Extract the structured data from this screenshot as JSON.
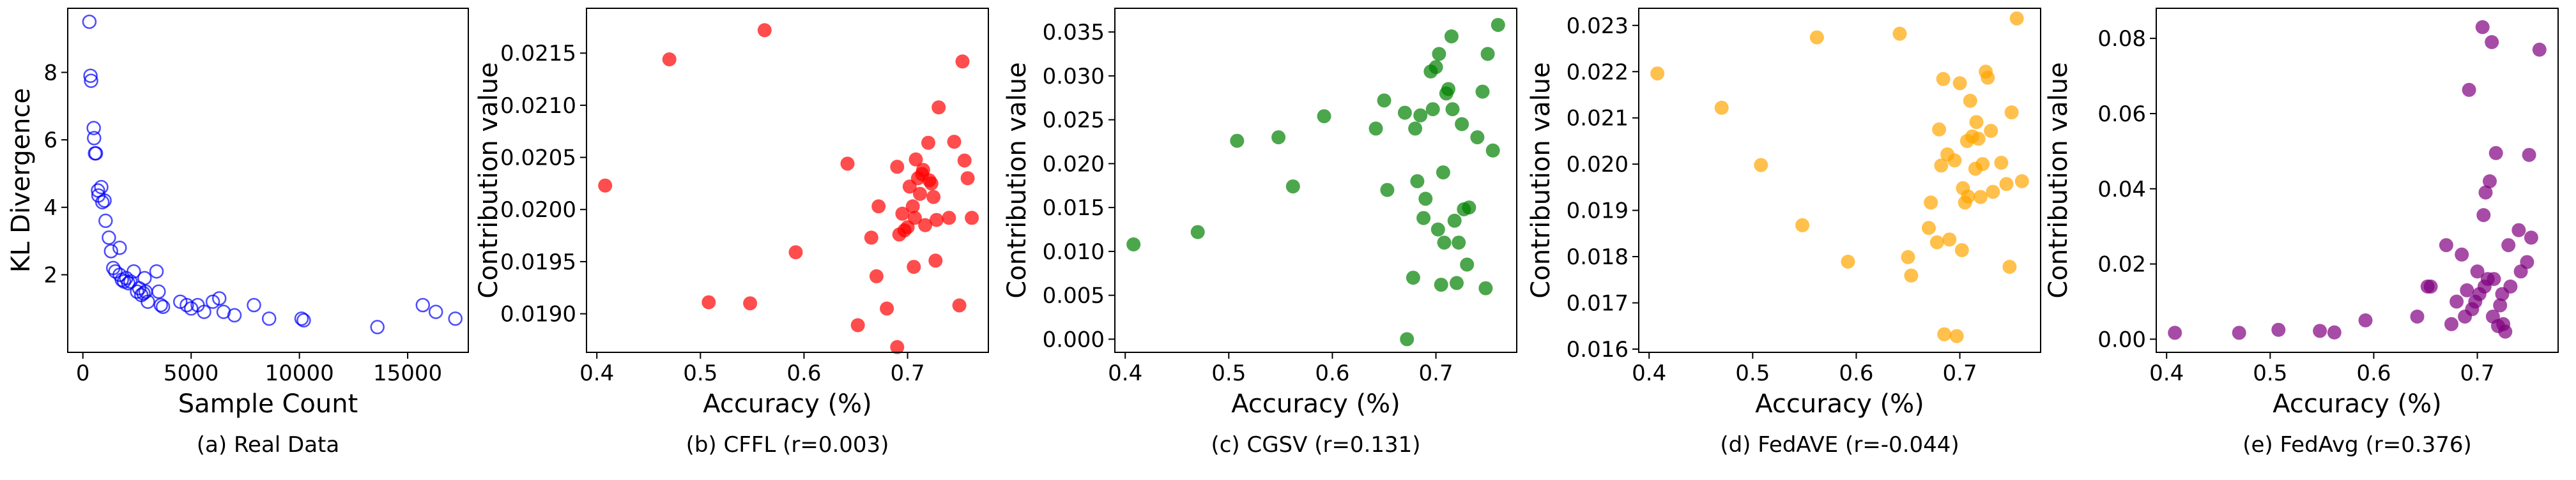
{
  "chart_data": [
    {
      "type": "scatter",
      "caption": "(a) Real Data",
      "xlabel": "Sample Count",
      "ylabel": "KL Divergence",
      "xlim": [
        -700,
        17800
      ],
      "ylim": [
        -0.3,
        9.9
      ],
      "xticks": [
        0,
        5000,
        10000,
        15000
      ],
      "xtick_labels": [
        "0",
        "5000",
        "10000",
        "15000"
      ],
      "yticks": [
        2,
        4,
        6,
        8
      ],
      "ytick_labels": [
        "2",
        "4",
        "6",
        "8"
      ],
      "color": "#0000ff",
      "marker": "hollow",
      "points": [
        [
          300,
          9.5
        ],
        [
          350,
          7.9
        ],
        [
          380,
          7.75
        ],
        [
          500,
          6.35
        ],
        [
          520,
          6.05
        ],
        [
          560,
          5.6
        ],
        [
          600,
          5.6
        ],
        [
          700,
          4.5
        ],
        [
          720,
          4.35
        ],
        [
          850,
          4.6
        ],
        [
          900,
          4.15
        ],
        [
          1000,
          4.2
        ],
        [
          1050,
          3.6
        ],
        [
          1200,
          3.1
        ],
        [
          1300,
          2.7
        ],
        [
          1400,
          2.2
        ],
        [
          1500,
          2.1
        ],
        [
          1700,
          2.8
        ],
        [
          1700,
          2.0
        ],
        [
          1800,
          1.85
        ],
        [
          1900,
          1.8
        ],
        [
          2000,
          1.9
        ],
        [
          2100,
          1.75
        ],
        [
          2200,
          1.8
        ],
        [
          2350,
          2.1
        ],
        [
          2500,
          1.5
        ],
        [
          2600,
          1.6
        ],
        [
          2700,
          1.4
        ],
        [
          2800,
          1.45
        ],
        [
          2850,
          1.9
        ],
        [
          2900,
          1.5
        ],
        [
          3000,
          1.2
        ],
        [
          3400,
          2.1
        ],
        [
          3500,
          1.5
        ],
        [
          3600,
          1.1
        ],
        [
          3700,
          1.05
        ],
        [
          4500,
          1.2
        ],
        [
          4800,
          1.1
        ],
        [
          5000,
          1.0
        ],
        [
          5300,
          1.1
        ],
        [
          5600,
          0.9
        ],
        [
          6000,
          1.2
        ],
        [
          6300,
          1.3
        ],
        [
          6500,
          0.9
        ],
        [
          7000,
          0.8
        ],
        [
          7900,
          1.1
        ],
        [
          8600,
          0.7
        ],
        [
          10100,
          0.7
        ],
        [
          10200,
          0.65
        ],
        [
          13600,
          0.45
        ],
        [
          15700,
          1.1
        ],
        [
          16300,
          0.9
        ],
        [
          17200,
          0.7
        ]
      ]
    },
    {
      "type": "scatter",
      "caption": "(b) CFFL (r=0.003)",
      "xlabel": "Accuracy (%)",
      "ylabel": "Contribution value",
      "xlim": [
        0.39,
        0.778
      ],
      "ylim": [
        0.01863,
        0.02193
      ],
      "xticks": [
        0.4,
        0.5,
        0.6,
        0.7
      ],
      "xtick_labels": [
        "0.4",
        "0.5",
        "0.6",
        "0.7"
      ],
      "yticks": [
        0.019,
        0.0195,
        0.02,
        0.0205,
        0.021,
        0.0215
      ],
      "ytick_labels": [
        "0.0190",
        "0.0195",
        "0.0200",
        "0.0205",
        "0.0210",
        "0.0215"
      ],
      "color": "#ff0000",
      "marker": "filled",
      "points": [
        [
          0.408,
          0.02023
        ],
        [
          0.47,
          0.02144
        ],
        [
          0.508,
          0.01911
        ],
        [
          0.548,
          0.0191
        ],
        [
          0.562,
          0.02172
        ],
        [
          0.592,
          0.01959
        ],
        [
          0.642,
          0.02044
        ],
        [
          0.652,
          0.01889
        ],
        [
          0.665,
          0.01973
        ],
        [
          0.67,
          0.01936
        ],
        [
          0.672,
          0.02003
        ],
        [
          0.68,
          0.01905
        ],
        [
          0.69,
          0.02041
        ],
        [
          0.69,
          0.01868
        ],
        [
          0.692,
          0.01976
        ],
        [
          0.695,
          0.01996
        ],
        [
          0.697,
          0.0198
        ],
        [
          0.7,
          0.01983
        ],
        [
          0.702,
          0.02022
        ],
        [
          0.705,
          0.02003
        ],
        [
          0.706,
          0.01945
        ],
        [
          0.707,
          0.01992
        ],
        [
          0.708,
          0.02048
        ],
        [
          0.71,
          0.0203
        ],
        [
          0.712,
          0.02015
        ],
        [
          0.714,
          0.02034
        ],
        [
          0.715,
          0.02038
        ],
        [
          0.717,
          0.01985
        ],
        [
          0.72,
          0.02064
        ],
        [
          0.721,
          0.02028
        ],
        [
          0.723,
          0.02025
        ],
        [
          0.725,
          0.02012
        ],
        [
          0.727,
          0.01951
        ],
        [
          0.728,
          0.0199
        ],
        [
          0.73,
          0.02098
        ],
        [
          0.74,
          0.01992
        ],
        [
          0.745,
          0.02065
        ],
        [
          0.75,
          0.01908
        ],
        [
          0.753,
          0.02142
        ],
        [
          0.755,
          0.02047
        ],
        [
          0.758,
          0.0203
        ],
        [
          0.762,
          0.01992
        ]
      ]
    },
    {
      "type": "scatter",
      "caption": "(c) CGSV (r=0.131)",
      "xlabel": "Accuracy (%)",
      "ylabel": "Contribution value",
      "xlim": [
        0.39,
        0.778
      ],
      "ylim": [
        -0.0015,
        0.0377
      ],
      "xticks": [
        0.4,
        0.5,
        0.6,
        0.7
      ],
      "xtick_labels": [
        "0.4",
        "0.5",
        "0.6",
        "0.7"
      ],
      "yticks": [
        0,
        0.005,
        0.01,
        0.015,
        0.02,
        0.025,
        0.03,
        0.035
      ],
      "ytick_labels": [
        "0.000",
        "0.005",
        "0.010",
        "0.015",
        "0.020",
        "0.025",
        "0.030",
        "0.035"
      ],
      "color": "#008000",
      "marker": "filled",
      "points": [
        [
          0.408,
          0.0108
        ],
        [
          0.47,
          0.0122
        ],
        [
          0.508,
          0.0226
        ],
        [
          0.548,
          0.023
        ],
        [
          0.562,
          0.0174
        ],
        [
          0.592,
          0.0254
        ],
        [
          0.642,
          0.024
        ],
        [
          0.65,
          0.0272
        ],
        [
          0.653,
          0.017
        ],
        [
          0.67,
          0.0258
        ],
        [
          0.672,
          0.0
        ],
        [
          0.678,
          0.007
        ],
        [
          0.68,
          0.024
        ],
        [
          0.682,
          0.018
        ],
        [
          0.685,
          0.0255
        ],
        [
          0.688,
          0.0138
        ],
        [
          0.69,
          0.016
        ],
        [
          0.695,
          0.0305
        ],
        [
          0.697,
          0.0262
        ],
        [
          0.7,
          0.031
        ],
        [
          0.702,
          0.0125
        ],
        [
          0.703,
          0.0325
        ],
        [
          0.705,
          0.0062
        ],
        [
          0.707,
          0.019
        ],
        [
          0.708,
          0.011
        ],
        [
          0.71,
          0.028
        ],
        [
          0.712,
          0.0285
        ],
        [
          0.715,
          0.0345
        ],
        [
          0.716,
          0.0262
        ],
        [
          0.718,
          0.0135
        ],
        [
          0.72,
          0.0064
        ],
        [
          0.722,
          0.011
        ],
        [
          0.725,
          0.0245
        ],
        [
          0.727,
          0.0148
        ],
        [
          0.73,
          0.0085
        ],
        [
          0.732,
          0.015
        ],
        [
          0.74,
          0.023
        ],
        [
          0.745,
          0.0282
        ],
        [
          0.748,
          0.0058
        ],
        [
          0.75,
          0.0325
        ],
        [
          0.755,
          0.0215
        ],
        [
          0.76,
          0.0358
        ]
      ]
    },
    {
      "type": "scatter",
      "caption": "(d) FedAVE (r=-0.044)",
      "xlabel": "Accuracy (%)",
      "ylabel": "Contribution value",
      "xlim": [
        0.39,
        0.778
      ],
      "ylim": [
        0.01593,
        0.02337
      ],
      "xticks": [
        0.4,
        0.5,
        0.6,
        0.7
      ],
      "xtick_labels": [
        "0.4",
        "0.5",
        "0.6",
        "0.7"
      ],
      "yticks": [
        0.016,
        0.017,
        0.018,
        0.019,
        0.02,
        0.021,
        0.022,
        0.023
      ],
      "ytick_labels": [
        "0.016",
        "0.017",
        "0.018",
        "0.019",
        "0.020",
        "0.021",
        "0.022",
        "0.023"
      ],
      "color": "#ffa500",
      "marker": "filled",
      "points": [
        [
          0.408,
          0.02196
        ],
        [
          0.47,
          0.02122
        ],
        [
          0.508,
          0.01998
        ],
        [
          0.548,
          0.01868
        ],
        [
          0.562,
          0.02274
        ],
        [
          0.592,
          0.01789
        ],
        [
          0.642,
          0.02282
        ],
        [
          0.65,
          0.01799
        ],
        [
          0.653,
          0.01759
        ],
        [
          0.67,
          0.01862
        ],
        [
          0.672,
          0.01917
        ],
        [
          0.678,
          0.01831
        ],
        [
          0.68,
          0.02075
        ],
        [
          0.682,
          0.01997
        ],
        [
          0.684,
          0.02184
        ],
        [
          0.685,
          0.01632
        ],
        [
          0.688,
          0.02021
        ],
        [
          0.69,
          0.01837
        ],
        [
          0.695,
          0.02008
        ],
        [
          0.697,
          0.01628
        ],
        [
          0.7,
          0.02175
        ],
        [
          0.702,
          0.01814
        ],
        [
          0.703,
          0.01948
        ],
        [
          0.705,
          0.01917
        ],
        [
          0.707,
          0.0205
        ],
        [
          0.708,
          0.0193
        ],
        [
          0.71,
          0.02137
        ],
        [
          0.712,
          0.0206
        ],
        [
          0.715,
          0.0199
        ],
        [
          0.716,
          0.02091
        ],
        [
          0.718,
          0.02055
        ],
        [
          0.72,
          0.01929
        ],
        [
          0.722,
          0.02
        ],
        [
          0.725,
          0.022
        ],
        [
          0.727,
          0.02187
        ],
        [
          0.73,
          0.02072
        ],
        [
          0.732,
          0.0194
        ],
        [
          0.74,
          0.02003
        ],
        [
          0.745,
          0.01957
        ],
        [
          0.748,
          0.01778
        ],
        [
          0.75,
          0.02112
        ],
        [
          0.755,
          0.02315
        ],
        [
          0.76,
          0.01963
        ]
      ]
    },
    {
      "type": "scatter",
      "caption": "(e) FedAvg (r=0.376)",
      "xlabel": "Accuracy (%)",
      "ylabel": "Contribution value",
      "xlim": [
        0.39,
        0.778
      ],
      "ylim": [
        -0.0035,
        0.088
      ],
      "xticks": [
        0.4,
        0.5,
        0.6,
        0.7
      ],
      "xtick_labels": [
        "0.4",
        "0.5",
        "0.6",
        "0.7"
      ],
      "yticks": [
        0,
        0.02,
        0.04,
        0.06,
        0.08
      ],
      "ytick_labels": [
        "0.00",
        "0.02",
        "0.04",
        "0.06",
        "0.08"
      ],
      "color": "#800080",
      "marker": "filled",
      "points": [
        [
          0.408,
          0.0017
        ],
        [
          0.47,
          0.0017
        ],
        [
          0.508,
          0.0025
        ],
        [
          0.548,
          0.0022
        ],
        [
          0.562,
          0.0018
        ],
        [
          0.592,
          0.005
        ],
        [
          0.642,
          0.006
        ],
        [
          0.652,
          0.014
        ],
        [
          0.655,
          0.014
        ],
        [
          0.67,
          0.025
        ],
        [
          0.675,
          0.004
        ],
        [
          0.68,
          0.01
        ],
        [
          0.685,
          0.0225
        ],
        [
          0.688,
          0.006
        ],
        [
          0.69,
          0.013
        ],
        [
          0.692,
          0.0663
        ],
        [
          0.695,
          0.008
        ],
        [
          0.698,
          0.01
        ],
        [
          0.7,
          0.018
        ],
        [
          0.702,
          0.012
        ],
        [
          0.705,
          0.083
        ],
        [
          0.706,
          0.033
        ],
        [
          0.707,
          0.014
        ],
        [
          0.708,
          0.039
        ],
        [
          0.71,
          0.016
        ],
        [
          0.712,
          0.042
        ],
        [
          0.714,
          0.079
        ],
        [
          0.715,
          0.006
        ],
        [
          0.716,
          0.016
        ],
        [
          0.718,
          0.0495
        ],
        [
          0.72,
          0.0035
        ],
        [
          0.722,
          0.009
        ],
        [
          0.724,
          0.012
        ],
        [
          0.725,
          0.004
        ],
        [
          0.727,
          0.002
        ],
        [
          0.73,
          0.025
        ],
        [
          0.732,
          0.014
        ],
        [
          0.74,
          0.029
        ],
        [
          0.742,
          0.018
        ],
        [
          0.748,
          0.0205
        ],
        [
          0.75,
          0.049
        ],
        [
          0.752,
          0.027
        ],
        [
          0.76,
          0.077
        ]
      ]
    }
  ]
}
